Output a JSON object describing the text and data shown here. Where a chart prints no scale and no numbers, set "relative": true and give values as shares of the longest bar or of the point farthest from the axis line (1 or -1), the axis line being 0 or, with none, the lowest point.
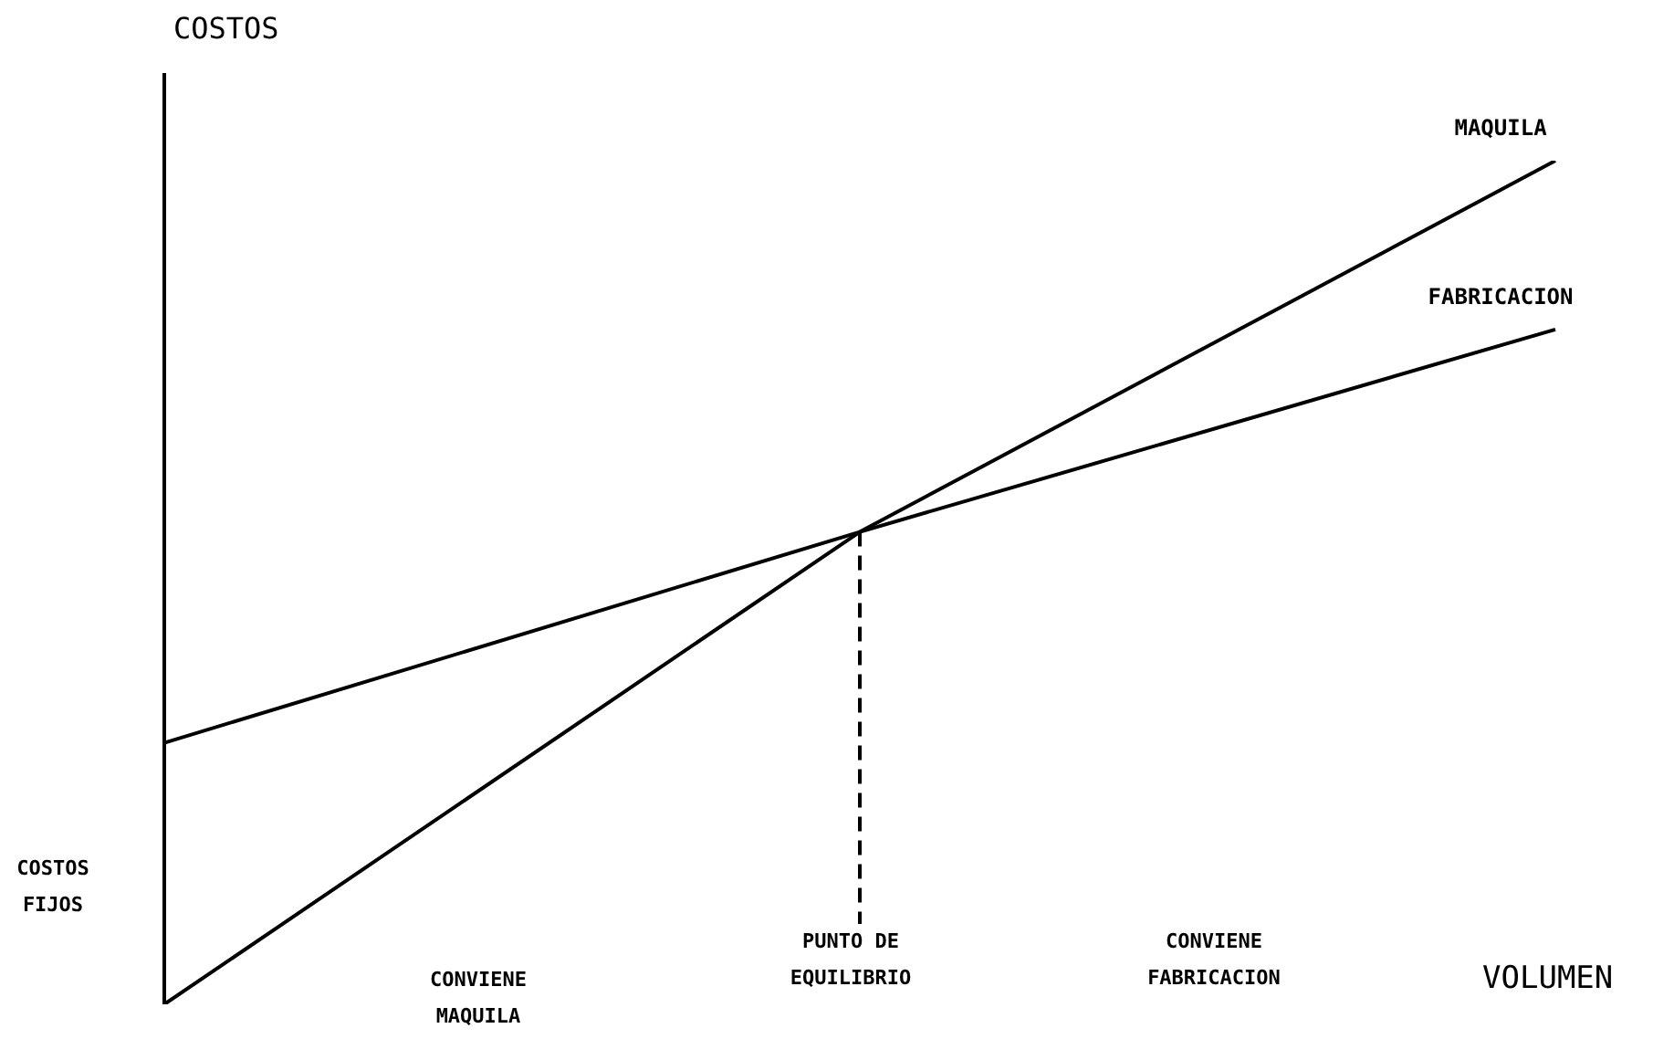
{
  "chart_data": {
    "type": "line",
    "relative": true,
    "ylabel": "COSTOS",
    "xlabel": "VOLUMEN",
    "categories": [
      null,
      null,
      null
    ],
    "series": [
      {
        "name": "MAQUILA",
        "color": "#000000",
        "values": [
          0,
          0.56,
          1
        ]
      },
      {
        "name": "FABRICACION",
        "color": "#000000",
        "values": [
          0.31,
          0.56,
          0.8
        ]
      }
    ],
    "annotations": [
      "COSTOS FIJOS",
      "CONVIENE MAQUILA",
      "PUNTO DE EQUILIBRIO",
      "CONVIENE FABRICACION"
    ],
    "marker": "none",
    "line_style": "solid"
  }
}
